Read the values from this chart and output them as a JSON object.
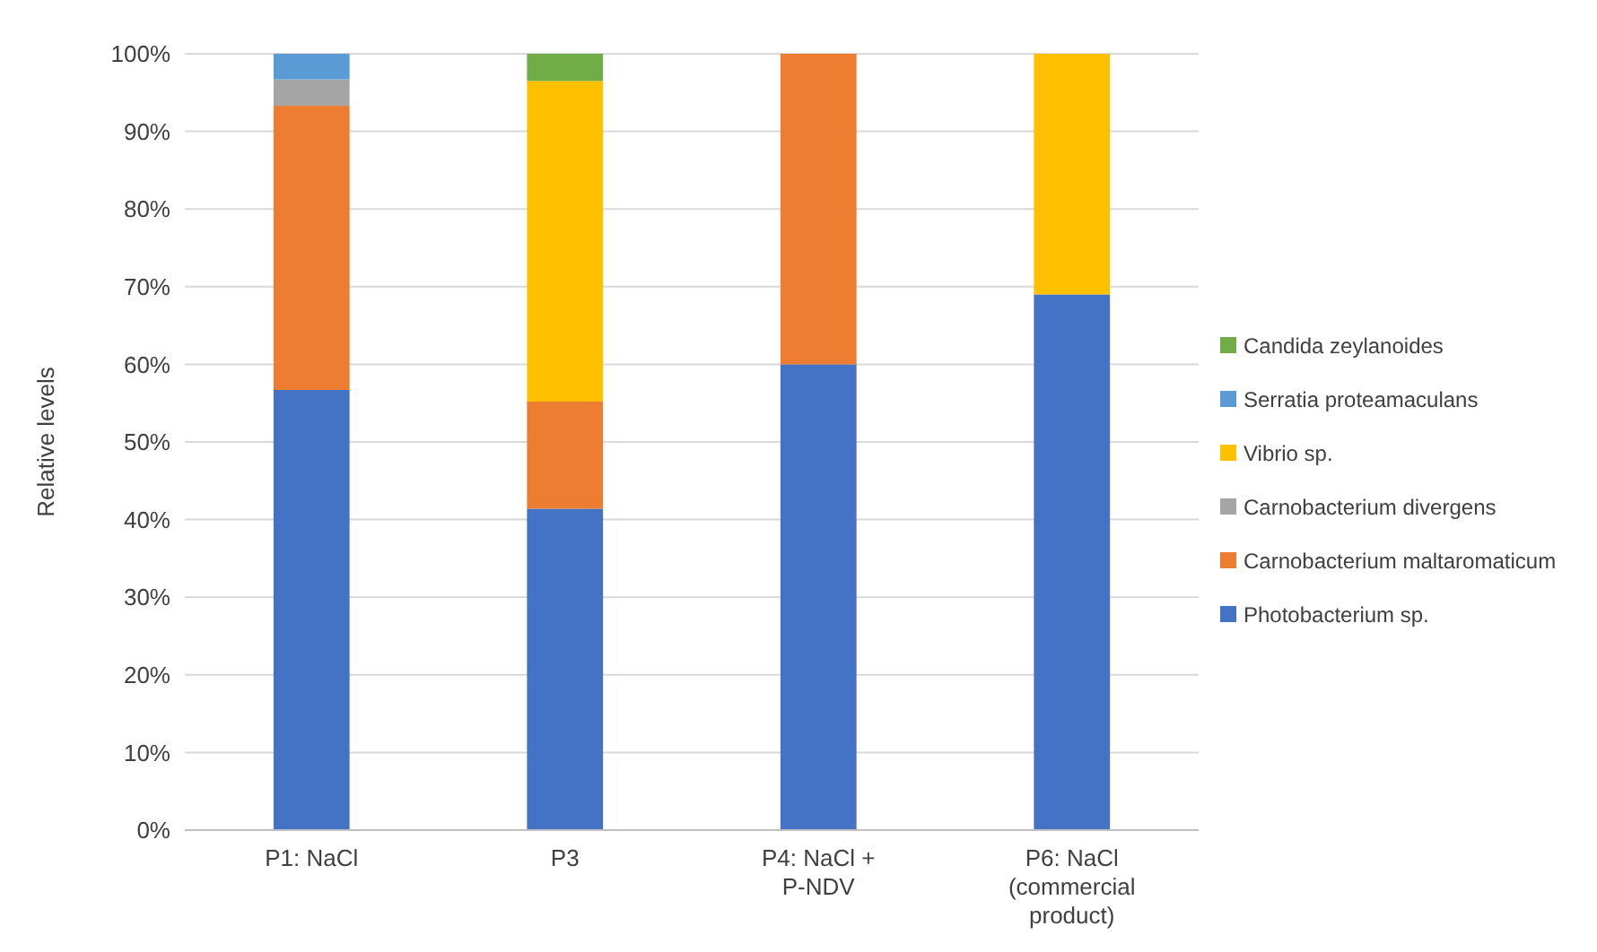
{
  "chart_data": {
    "type": "bar",
    "stacked": true,
    "ylabel": "Relative levels",
    "categories": [
      "P1: NaCl",
      "P3",
      "P4: NaCl + P-NDV",
      "P6: NaCl (commercial product)"
    ],
    "series": [
      {
        "name": "Photobacterium sp.",
        "color": "#4472c4",
        "values": [
          56.7,
          41.4,
          60,
          69
        ]
      },
      {
        "name": "Carnobacterium maltaromaticum",
        "color": "#ed7d31",
        "values": [
          36.6,
          13.8,
          40,
          0
        ]
      },
      {
        "name": "Carnobacterium divergens",
        "color": "#a5a5a5",
        "values": [
          3.4,
          0,
          0,
          0
        ]
      },
      {
        "name": "Vibrio sp.",
        "color": "#ffc000",
        "values": [
          0,
          41.3,
          0,
          31
        ]
      },
      {
        "name": "Serratia proteamaculans",
        "color": "#5b9bd5",
        "values": [
          3.3,
          0,
          0,
          0
        ]
      },
      {
        "name": "Candida zeylanoides",
        "color": "#70ad47",
        "values": [
          0,
          3.5,
          0,
          0
        ]
      }
    ],
    "ylim": [
      0,
      100
    ],
    "yticks": [
      {
        "value": 0,
        "label": "0%"
      },
      {
        "value": 10,
        "label": "10%"
      },
      {
        "value": 20,
        "label": "20%"
      },
      {
        "value": 30,
        "label": "30%"
      },
      {
        "value": 40,
        "label": "40%"
      },
      {
        "value": 50,
        "label": "50%"
      },
      {
        "value": 60,
        "label": "60%"
      },
      {
        "value": 70,
        "label": "70%"
      },
      {
        "value": 80,
        "label": "80%"
      },
      {
        "value": 90,
        "label": "90%"
      },
      {
        "value": 100,
        "label": "100%"
      }
    ],
    "grid": "y",
    "legend": "right"
  }
}
